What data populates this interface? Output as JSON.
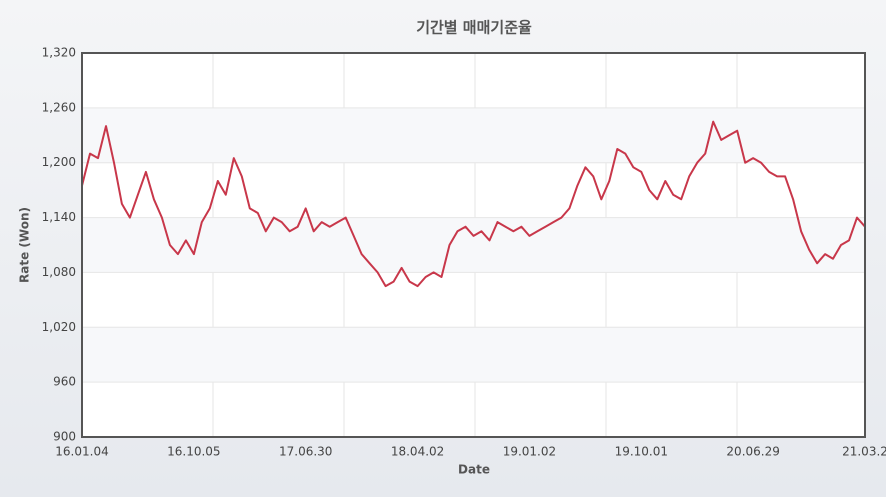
{
  "chart_data": {
    "type": "line",
    "title": "기간별 매매기준율",
    "xlabel": "Date",
    "ylabel": "Rate (Won)",
    "categories": [
      "16.01.04",
      null,
      null,
      null,
      null,
      null,
      null,
      null,
      null,
      null,
      null,
      null,
      null,
      null,
      "16.10.05",
      null,
      null,
      null,
      null,
      null,
      null,
      null,
      null,
      null,
      null,
      null,
      null,
      null,
      "17.06.30",
      null,
      null,
      null,
      null,
      null,
      null,
      null,
      null,
      null,
      null,
      null,
      null,
      null,
      "18.04.02",
      null,
      null,
      null,
      null,
      null,
      null,
      null,
      null,
      null,
      null,
      null,
      null,
      null,
      "19.01.02",
      null,
      null,
      null,
      null,
      null,
      null,
      null,
      null,
      null,
      null,
      null,
      null,
      null,
      "19.10.01",
      null,
      null,
      null,
      null,
      null,
      null,
      null,
      null,
      null,
      null,
      null,
      null,
      null,
      "20.06.29",
      null,
      null,
      null,
      null,
      null,
      null,
      null,
      null,
      null,
      null,
      null,
      null,
      null,
      "21.03.2"
    ],
    "series": [
      {
        "name": "Rate",
        "color": "#c8374a",
        "values": [
          1175,
          1210,
          1205,
          1240,
          1200,
          1155,
          1140,
          1165,
          1190,
          1160,
          1140,
          1110,
          1100,
          1115,
          1100,
          1135,
          1150,
          1180,
          1165,
          1205,
          1185,
          1150,
          1145,
          1125,
          1140,
          1135,
          1125,
          1130,
          1150,
          1125,
          1135,
          1130,
          1135,
          1140,
          1120,
          1100,
          1090,
          1080,
          1065,
          1070,
          1085,
          1070,
          1065,
          1075,
          1080,
          1075,
          1110,
          1125,
          1130,
          1120,
          1125,
          1115,
          1135,
          1130,
          1125,
          1130,
          1120,
          1125,
          1130,
          1135,
          1140,
          1150,
          1175,
          1195,
          1185,
          1160,
          1180,
          1215,
          1210,
          1195,
          1190,
          1170,
          1160,
          1180,
          1165,
          1160,
          1185,
          1200,
          1210,
          1245,
          1225,
          1230,
          1235,
          1200,
          1205,
          1200,
          1190,
          1185,
          1185,
          1160,
          1125,
          1105,
          1090,
          1100,
          1095,
          1110,
          1115,
          1140,
          1130
        ]
      }
    ],
    "ylim": [
      900,
      1320
    ],
    "yticks": [
      900,
      {
        "value": 960,
        "label": "960"
      },
      {
        "value": 1020,
        "label": "1,020"
      },
      {
        "value": 1080,
        "label": "1,080"
      },
      {
        "value": 1140,
        "label": "1,140"
      },
      {
        "value": 1200,
        "label": "1,200"
      },
      {
        "value": 1260,
        "label": "1,260"
      },
      {
        "value": 1320,
        "label": "1,320"
      }
    ],
    "grid": true
  }
}
